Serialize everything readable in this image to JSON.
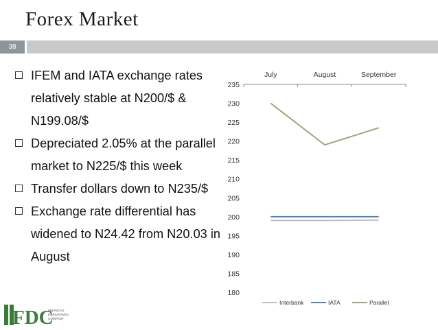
{
  "slide": {
    "title": "Forex Market",
    "page_number": "38"
  },
  "bullets": [
    "IFEM and IATA exchange rates relatively stable at N200/$ & N199.08/$",
    "Depreciated 2.05% at the parallel market to N225/$ this week",
    "Transfer dollars down to N235/$",
    "Exchange rate differential has widened to N24.42 from N20.03 in August"
  ],
  "logo": {
    "mark": "FDC",
    "tagline": [
      "FINANCIAL",
      "DERIVATIVES",
      "COMPANY"
    ]
  },
  "chart_data": {
    "type": "line",
    "categories": [
      "July",
      "August",
      "September"
    ],
    "category_axis_position": "top",
    "ylim": [
      180,
      235
    ],
    "yticks": [
      180,
      185,
      190,
      195,
      200,
      205,
      210,
      215,
      220,
      225,
      230,
      235
    ],
    "grid": false,
    "legend": "bottom",
    "series": [
      {
        "name": "Interbank",
        "values": [
          199,
          199,
          199.1
        ],
        "color": "#bfbfbf"
      },
      {
        "name": "IATA",
        "values": [
          200,
          200,
          200
        ],
        "color": "#4f81bd"
      },
      {
        "name": "Parallel",
        "values": [
          230,
          219,
          223.5
        ],
        "color": "#9ba57a"
      }
    ]
  }
}
